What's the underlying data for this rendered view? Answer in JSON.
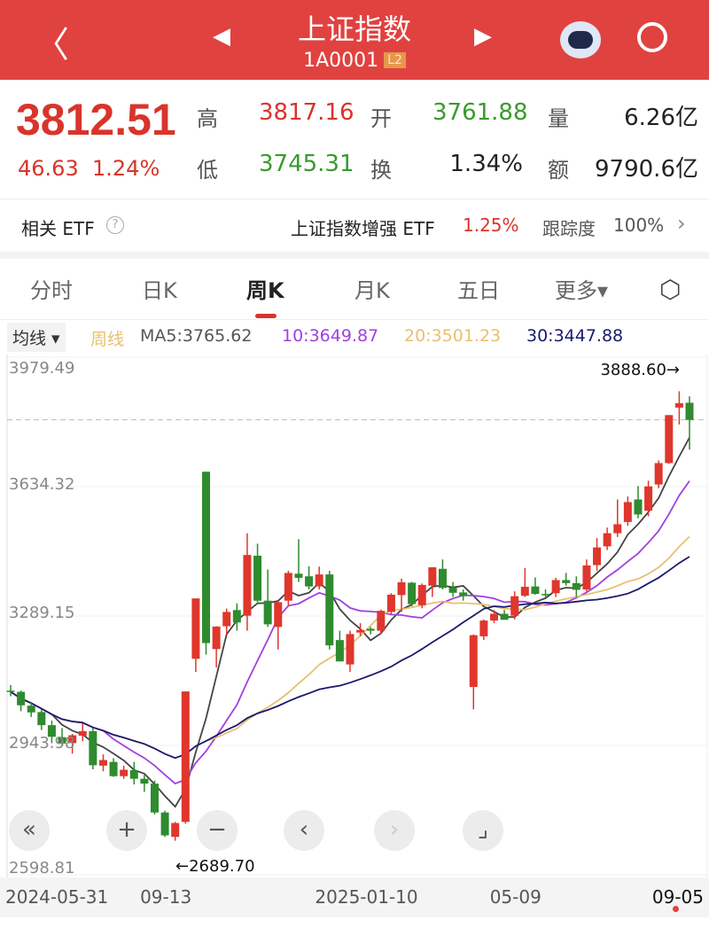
{
  "header": {
    "title": "上证指数",
    "code": "1A0001",
    "level_badge": "L2",
    "back_icon": "chevron-left-icon",
    "prev_icon": "triangle-left-icon",
    "next_icon": "triangle-right-icon",
    "robot_icon": "robot-assistant-icon",
    "search_icon": "search-icon"
  },
  "quote": {
    "price": "3812.51",
    "change": "46.63",
    "change_pct": "1.24%",
    "high_label": "高",
    "high": "3817.16",
    "open_label": "开",
    "open": "3761.88",
    "volume_label": "量",
    "volume": "6.26亿",
    "low_label": "低",
    "low": "3745.31",
    "turnover_label": "换",
    "turnover": "1.34%",
    "amount_label": "额",
    "amount": "9790.6亿"
  },
  "etf": {
    "label": "相关 ETF",
    "help": "?",
    "name": "上证指数增强 ETF",
    "pct": "1.25%",
    "tracking_label": "跟踪度",
    "tracking": "100%",
    "chevron": "›"
  },
  "tabs": [
    {
      "label": "分时"
    },
    {
      "label": "日K"
    },
    {
      "label": "周K",
      "active": true
    },
    {
      "label": "月K"
    },
    {
      "label": "五日"
    },
    {
      "label": "更多▾"
    }
  ],
  "ma_legend": {
    "selector": "均线 ▾",
    "period": "周线",
    "ma5": "MA5:3765.62",
    "ma10": "10:3649.87",
    "ma20": "20:3501.23",
    "ma30": "30:3447.88"
  },
  "colors": {
    "up": "#e0362c",
    "down": "#2e8b2e",
    "ma5": "#444444",
    "ma10": "#a040e0",
    "ma20": "#e8c070",
    "ma30": "#1a1a6e",
    "header": "#e04240"
  },
  "controls": [
    "«",
    "+",
    "−",
    "‹",
    "›",
    "⌟"
  ],
  "chart_data": {
    "type": "candlestick",
    "y_ticks": [
      "3979.49",
      "3634.32",
      "3289.15",
      "2943.98",
      "2598.81"
    ],
    "ylim": [
      2598.81,
      3979.49
    ],
    "max_label": "3888.60→",
    "min_label": "←2689.70",
    "current_price": 3812.51,
    "x_labels": [
      {
        "i": 0,
        "text": "2024-05-31"
      },
      {
        "i": 15,
        "text": "09-13"
      },
      {
        "i": 32,
        "text": "2025-01-10"
      },
      {
        "i": 49,
        "text": "05-09"
      },
      {
        "i": 66,
        "text": "09-05"
      }
    ],
    "ohlc": [
      [
        3090,
        3105,
        3075,
        3087
      ],
      [
        3087,
        3090,
        3035,
        3051
      ],
      [
        3050,
        3060,
        3020,
        3032
      ],
      [
        3033,
        3040,
        2985,
        2998
      ],
      [
        2998,
        3010,
        2950,
        2967
      ],
      [
        2966,
        2990,
        2945,
        2949
      ],
      [
        2950,
        2975,
        2922,
        2971
      ],
      [
        2970,
        3002,
        2955,
        2982
      ],
      [
        2982,
        2990,
        2880,
        2891
      ],
      [
        2890,
        2920,
        2875,
        2905
      ],
      [
        2900,
        2910,
        2860,
        2862
      ],
      [
        2862,
        2890,
        2855,
        2879
      ],
      [
        2878,
        2900,
        2840,
        2855
      ],
      [
        2855,
        2865,
        2820,
        2842
      ],
      [
        2842,
        2850,
        2760,
        2765
      ],
      [
        2765,
        2770,
        2700,
        2704
      ],
      [
        2700,
        2740,
        2689.7,
        2737
      ],
      [
        2740,
        3088,
        2735,
        3088
      ],
      [
        3175,
        3336,
        3140,
        3336
      ],
      [
        3674,
        3674,
        3186,
        3217
      ],
      [
        3201,
        3262,
        3152,
        3261
      ],
      [
        3262,
        3309,
        3240,
        3300
      ],
      [
        3305,
        3323,
        3250,
        3272
      ],
      [
        3290,
        3510,
        3250,
        3452
      ],
      [
        3450,
        3482,
        3320,
        3330
      ],
      [
        3330,
        3413,
        3260,
        3267
      ],
      [
        3260,
        3328,
        3200,
        3326
      ],
      [
        3330,
        3410,
        3315,
        3404
      ],
      [
        3402,
        3494,
        3380,
        3391
      ],
      [
        3395,
        3422,
        3360,
        3368
      ],
      [
        3368,
        3421,
        3360,
        3400
      ],
      [
        3400,
        3410,
        3200,
        3211
      ],
      [
        3225,
        3250,
        3168,
        3168
      ],
      [
        3160,
        3250,
        3140,
        3241
      ],
      [
        3245,
        3270,
        3235,
        3252
      ],
      [
        3255,
        3260,
        3240,
        3250
      ],
      [
        3250,
        3306,
        3240,
        3303
      ],
      [
        3300,
        3350,
        3295,
        3346
      ],
      [
        3345,
        3389,
        3300,
        3379
      ],
      [
        3378,
        3380,
        3315,
        3321
      ],
      [
        3318,
        3376,
        3310,
        3372
      ],
      [
        3370,
        3419,
        3340,
        3419
      ],
      [
        3415,
        3440,
        3360,
        3364
      ],
      [
        3365,
        3380,
        3340,
        3351
      ],
      [
        3352,
        3360,
        3330,
        3342
      ],
      [
        3100,
        3240,
        3040,
        3238
      ],
      [
        3235,
        3280,
        3225,
        3277
      ],
      [
        3277,
        3305,
        3270,
        3295
      ],
      [
        3295,
        3305,
        3279,
        3279
      ],
      [
        3290,
        3355,
        3280,
        3342
      ],
      [
        3343,
        3417,
        3340,
        3367
      ],
      [
        3368,
        3392,
        3346,
        3348
      ],
      [
        3348,
        3360,
        3340,
        3347
      ],
      [
        3350,
        3391,
        3340,
        3385
      ],
      [
        3385,
        3404,
        3370,
        3377
      ],
      [
        3377,
        3395,
        3340,
        3359
      ],
      [
        3360,
        3440,
        3355,
        3424
      ],
      [
        3425,
        3497,
        3410,
        3472
      ],
      [
        3475,
        3525,
        3465,
        3510
      ],
      [
        3510,
        3600,
        3500,
        3534
      ],
      [
        3540,
        3608,
        3530,
        3593
      ],
      [
        3600,
        3636,
        3550,
        3560
      ],
      [
        3570,
        3650,
        3555,
        3635
      ],
      [
        3640,
        3704,
        3630,
        3697
      ],
      [
        3697,
        3825,
        3695,
        3825
      ],
      [
        3845,
        3888.6,
        3800,
        3857
      ],
      [
        3858,
        3875,
        3733,
        3812
      ]
    ]
  }
}
